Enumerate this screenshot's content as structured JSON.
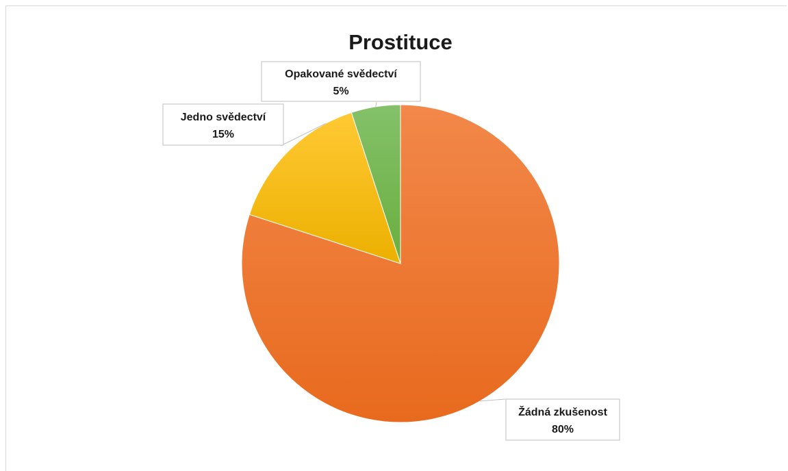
{
  "chart_data": {
    "type": "pie",
    "title": "Prostituce",
    "slices": [
      {
        "label": "Žádná zkušenost",
        "value": 80,
        "value_label": "80%",
        "color_top": "#F2884A",
        "color_bottom": "#E86A1E"
      },
      {
        "label": "Jedno svědectví",
        "value": 15,
        "value_label": "15%",
        "color_top": "#FFC934",
        "color_bottom": "#ECB000"
      },
      {
        "label": "Opakované svědectví",
        "value": 5,
        "value_label": "5%",
        "color_top": "#84C16A",
        "color_bottom": "#6AAE3E"
      }
    ],
    "start_angle": "12 o'clock",
    "direction": "clockwise",
    "legend": "none"
  }
}
